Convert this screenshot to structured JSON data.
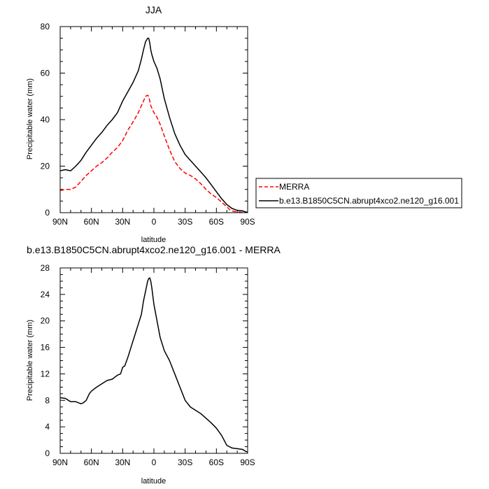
{
  "chart_data": [
    {
      "type": "line",
      "title": "JJA",
      "xlabel": "latitude",
      "ylabel": "Precipitable water (mm)",
      "xlim": [
        90,
        -90
      ],
      "ylim": [
        0,
        80
      ],
      "x_ticks": [
        90,
        60,
        30,
        0,
        -30,
        -60,
        -90
      ],
      "x_tick_labels": [
        "90N",
        "60N",
        "30N",
        "0",
        "30S",
        "60S",
        "90S"
      ],
      "y_ticks": [
        0,
        20,
        40,
        60,
        80
      ],
      "y_tick_labels": [
        "0",
        "20",
        "40",
        "60",
        "80"
      ],
      "legend": {
        "placement": "right",
        "entries": [
          "MERRA",
          "b.e13.B1850C5CN.abrupt4xco2.ne120_g16.001"
        ]
      },
      "series": [
        {
          "name": "MERRA",
          "color": "#ff0000",
          "dash": "dashed",
          "x": [
            90,
            85,
            80,
            75,
            70,
            65,
            60,
            55,
            50,
            45,
            40,
            35,
            30,
            25,
            20,
            15,
            12,
            10,
            8,
            6,
            5,
            4,
            3,
            2,
            0,
            -3,
            -6,
            -10,
            -15,
            -20,
            -25,
            -30,
            -35,
            -40,
            -45,
            -50,
            -55,
            -60,
            -65,
            -70,
            -73,
            -75,
            -80,
            -85,
            -88,
            -90
          ],
          "values": [
            9.5,
            10,
            10,
            11,
            13.5,
            16,
            18,
            20,
            21.5,
            23.5,
            26,
            28,
            31,
            35.5,
            39,
            43,
            46,
            48,
            50,
            50.5,
            50,
            48,
            46,
            45,
            43,
            41,
            38,
            33,
            27,
            22,
            19,
            17,
            16,
            14.5,
            12.5,
            10,
            8,
            6.5,
            4.5,
            2.5,
            1.2,
            0.7,
            0.3,
            0.2,
            0.1,
            0.1
          ]
        },
        {
          "name": "b.e13.B1850C5CN.abrupt4xco2.ne120_g16.001",
          "color": "#000000",
          "dash": "solid",
          "x": [
            90,
            85,
            80,
            75,
            70,
            65,
            60,
            55,
            50,
            45,
            40,
            35,
            30,
            25,
            20,
            15,
            12,
            10,
            8,
            6,
            5,
            4,
            3,
            2,
            0,
            -3,
            -6,
            -10,
            -15,
            -20,
            -25,
            -30,
            -35,
            -40,
            -45,
            -50,
            -55,
            -60,
            -65,
            -70,
            -75,
            -80,
            -85,
            -88,
            -90
          ],
          "values": [
            18,
            18.5,
            18,
            20,
            22.5,
            26,
            29,
            32,
            34.5,
            37.5,
            40,
            43,
            48,
            52,
            56,
            61,
            66,
            70,
            73.5,
            75,
            75,
            73,
            70,
            68,
            65,
            62,
            57.5,
            49,
            41,
            34,
            29,
            25,
            22.5,
            20,
            17.5,
            15,
            12,
            9,
            6,
            3.5,
            1.8,
            1,
            0.8,
            0.3,
            0.2
          ]
        }
      ]
    },
    {
      "type": "line",
      "title": "b.e13.B1850C5CN.abrupt4xco2.ne120_g16.001 - MERRA",
      "xlabel": "latitude",
      "ylabel": "Precipitable water (mm)",
      "xlim": [
        90,
        -90
      ],
      "ylim": [
        0,
        28
      ],
      "x_ticks": [
        90,
        60,
        30,
        0,
        -30,
        -60,
        -90
      ],
      "x_tick_labels": [
        "90N",
        "60N",
        "30N",
        "0",
        "30S",
        "60S",
        "90S"
      ],
      "y_ticks": [
        0,
        4,
        8,
        12,
        16,
        20,
        24,
        28
      ],
      "y_tick_labels": [
        "0",
        "4",
        "8",
        "12",
        "16",
        "20",
        "24",
        "28"
      ],
      "series": [
        {
          "color": "#000000",
          "dash": "solid",
          "x": [
            90,
            85,
            80,
            75,
            72,
            70,
            68,
            65,
            62,
            60,
            55,
            50,
            45,
            40,
            35,
            32,
            30,
            28,
            25,
            22,
            20,
            17,
            15,
            12,
            10,
            8,
            6,
            5,
            4,
            3,
            2,
            0,
            -3,
            -6,
            -10,
            -15,
            -20,
            -25,
            -30,
            -35,
            -40,
            -45,
            -50,
            -55,
            -60,
            -65,
            -70,
            -75,
            -80,
            -85,
            -88,
            -90
          ],
          "values": [
            8.4,
            8.3,
            7.8,
            7.8,
            7.6,
            7.5,
            7.6,
            8.0,
            9.0,
            9.4,
            10.0,
            10.5,
            11.0,
            11.2,
            11.8,
            12.0,
            13.0,
            13.2,
            14.5,
            16.0,
            17.0,
            18.5,
            19.5,
            21.0,
            23.0,
            24.5,
            26.0,
            26.4,
            26.5,
            26.0,
            25.0,
            22.5,
            20.0,
            17.5,
            15.5,
            14.0,
            12.0,
            10.0,
            8.0,
            7.0,
            6.5,
            6.0,
            5.3,
            4.6,
            3.8,
            2.7,
            1.2,
            0.8,
            0.7,
            0.6,
            0.3,
            0.2
          ]
        }
      ]
    }
  ]
}
